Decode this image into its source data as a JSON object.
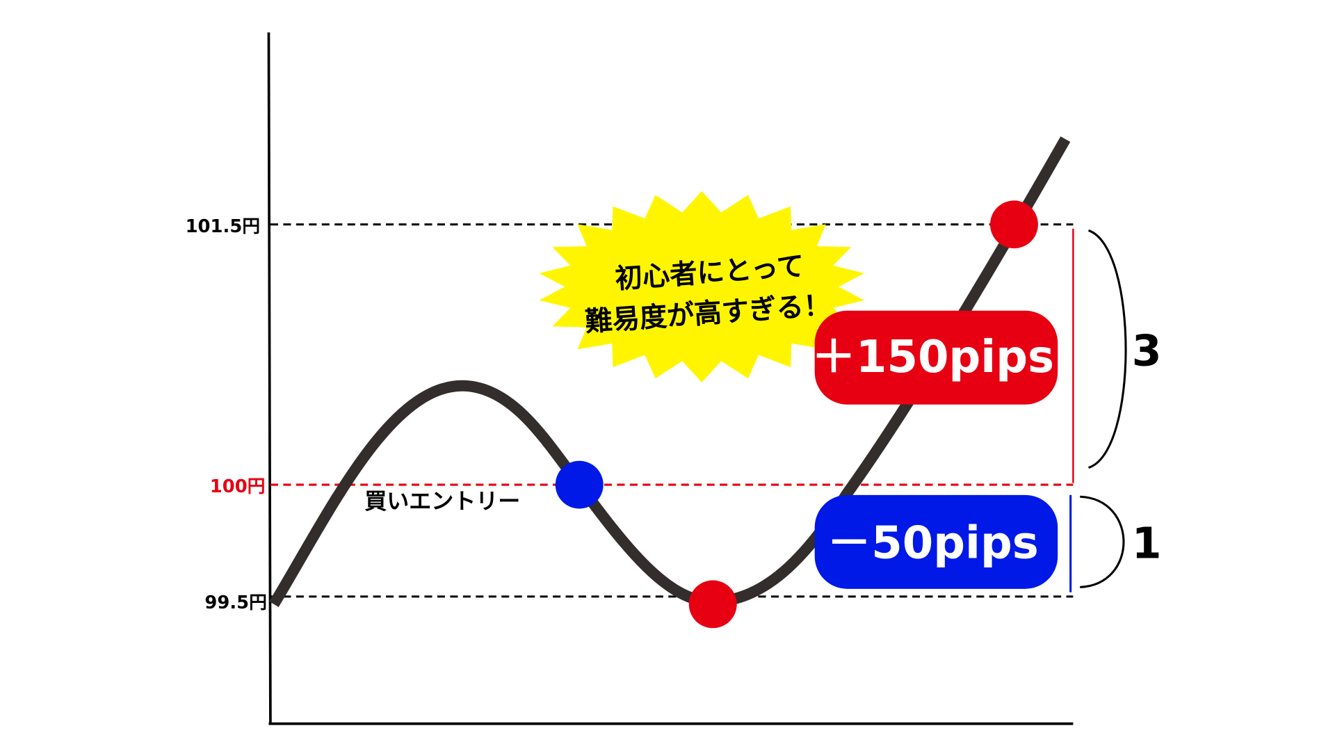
{
  "price_levels": [
    {
      "label": "101.5円",
      "value": 101.5,
      "color": "#000000"
    },
    {
      "label": "100円",
      "value": 100,
      "color": "#e60012"
    },
    {
      "label": "99.5円",
      "value": 99.5,
      "color": "#000000"
    }
  ],
  "entry_label": "買いエントリー",
  "callout": {
    "line1": "初心者にとって",
    "line2": "難易度が高すぎる！",
    "color": "#fff500"
  },
  "profit_badge": {
    "label": "＋150pips",
    "color": "#e60012"
  },
  "loss_badge": {
    "label": "－50pips",
    "color": "#0019e6"
  },
  "ratio": {
    "reward": "3",
    "risk": "1"
  },
  "colors": {
    "entry_point": "#0019e6",
    "exit_point": "#e60012",
    "price_line": "#332d2b"
  }
}
